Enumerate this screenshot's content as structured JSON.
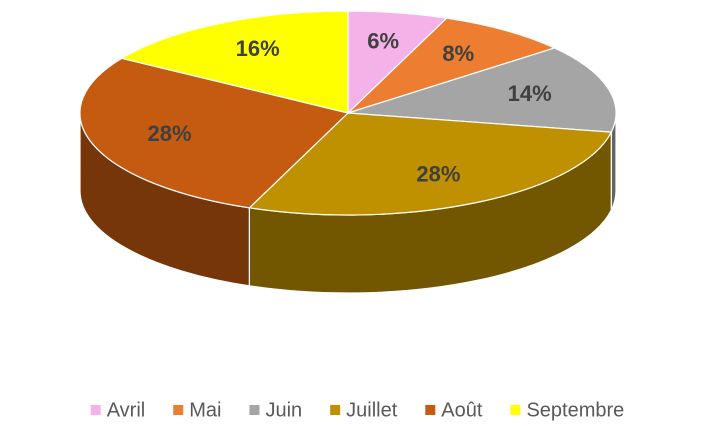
{
  "chart_data": {
    "type": "pie3d",
    "categories": [
      "Avril",
      "Mai",
      "Juin",
      "Juillet",
      "Août",
      "Septembre"
    ],
    "values": [
      6,
      8,
      14,
      28,
      28,
      16
    ],
    "value_labels": [
      "6%",
      "8%",
      "14%",
      "28%",
      "28%",
      "16%"
    ],
    "colors": [
      "#f4b2e8",
      "#ed7d31",
      "#a5a5a5",
      "#bf9000",
      "#c55a11",
      "#ffff00"
    ],
    "legend": "bottom"
  }
}
